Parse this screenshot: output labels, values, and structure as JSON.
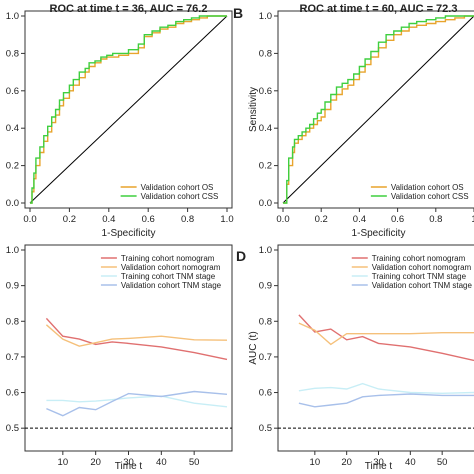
{
  "colors": {
    "os": "#E8A42C",
    "css": "#3FCF3F",
    "train_nomo": "#E07070",
    "valid_nomo": "#F5C07A",
    "train_tnm": "#C8EEF6",
    "valid_tnm": "#A8C0EA",
    "ref": "#000000"
  },
  "chart_data": [
    {
      "id": "A",
      "panel_letter": "",
      "type": "line",
      "title": "ROC at time t = 36, AUC = 76.2",
      "xlabel": "1-Specificity",
      "ylabel": "",
      "xlim": [
        0,
        1
      ],
      "ylim": [
        0,
        1
      ],
      "xticks": [
        "0.0",
        "0.2",
        "0.4",
        "0.6",
        "0.8",
        "1.0"
      ],
      "yticks": [
        "0.0",
        "0.2",
        "0.4",
        "0.6",
        "0.8",
        "1.0"
      ],
      "legend": "bottom-right",
      "series": [
        {
          "name": "Validation cohort OS",
          "color_key": "os",
          "x": [
            0,
            0.01,
            0.02,
            0.03,
            0.05,
            0.07,
            0.09,
            0.11,
            0.13,
            0.15,
            0.17,
            0.2,
            0.22,
            0.25,
            0.28,
            0.3,
            0.33,
            0.36,
            0.39,
            0.42,
            0.45,
            0.5,
            0.55,
            0.58,
            0.62,
            0.66,
            0.7,
            0.74,
            0.78,
            0.82,
            0.86,
            0.9,
            0.94,
            1.0
          ],
          "y": [
            0,
            0.06,
            0.13,
            0.2,
            0.27,
            0.33,
            0.38,
            0.43,
            0.47,
            0.52,
            0.56,
            0.6,
            0.63,
            0.67,
            0.7,
            0.73,
            0.75,
            0.77,
            0.78,
            0.78,
            0.79,
            0.8,
            0.83,
            0.89,
            0.91,
            0.93,
            0.94,
            0.96,
            0.97,
            0.98,
            0.99,
            1.0,
            1.0,
            1.0
          ]
        },
        {
          "name": "Validation cohort CSS",
          "color_key": "css",
          "x": [
            0,
            0.01,
            0.02,
            0.03,
            0.05,
            0.07,
            0.09,
            0.11,
            0.13,
            0.15,
            0.17,
            0.2,
            0.22,
            0.25,
            0.28,
            0.3,
            0.33,
            0.36,
            0.39,
            0.42,
            0.45,
            0.5,
            0.55,
            0.58,
            0.62,
            0.66,
            0.7,
            0.74,
            0.78,
            0.82,
            0.86,
            0.9,
            0.94,
            1.0
          ],
          "y": [
            0,
            0.08,
            0.16,
            0.24,
            0.3,
            0.36,
            0.41,
            0.46,
            0.5,
            0.55,
            0.59,
            0.63,
            0.66,
            0.7,
            0.72,
            0.75,
            0.76,
            0.78,
            0.79,
            0.8,
            0.8,
            0.82,
            0.85,
            0.9,
            0.92,
            0.94,
            0.95,
            0.97,
            0.98,
            0.99,
            1.0,
            1.0,
            1.0,
            1.0
          ]
        }
      ]
    },
    {
      "id": "B",
      "panel_letter": "B",
      "type": "line",
      "title": "ROC at time t = 60, AUC = 72.3",
      "xlabel": "1-Specificity",
      "ylabel": "Sensitivity",
      "xlim": [
        0,
        1
      ],
      "ylim": [
        0,
        1
      ],
      "xticks": [
        "0.0",
        "0.2",
        "0.4",
        "0.6",
        "0.8",
        "1"
      ],
      "yticks": [
        "0.0",
        "0.2",
        "0.4",
        "0.6",
        "0.8",
        "1.0"
      ],
      "legend": "bottom-right",
      "series": [
        {
          "name": "Validation cohort OS",
          "color_key": "os",
          "x": [
            0,
            0.02,
            0.03,
            0.05,
            0.06,
            0.08,
            0.1,
            0.12,
            0.14,
            0.16,
            0.18,
            0.2,
            0.22,
            0.25,
            0.28,
            0.31,
            0.34,
            0.37,
            0.4,
            0.43,
            0.46,
            0.5,
            0.54,
            0.58,
            0.62,
            0.66,
            0.7,
            0.75,
            0.8,
            0.85,
            0.9,
            0.95,
            1.0
          ],
          "y": [
            0,
            0.1,
            0.2,
            0.27,
            0.32,
            0.34,
            0.36,
            0.38,
            0.4,
            0.42,
            0.44,
            0.46,
            0.5,
            0.55,
            0.58,
            0.61,
            0.63,
            0.66,
            0.7,
            0.74,
            0.78,
            0.83,
            0.87,
            0.9,
            0.92,
            0.94,
            0.95,
            0.96,
            0.97,
            0.98,
            0.99,
            1.0,
            1.0
          ]
        },
        {
          "name": "Validation cohort CSS",
          "color_key": "css",
          "x": [
            0,
            0.02,
            0.03,
            0.05,
            0.06,
            0.08,
            0.1,
            0.12,
            0.14,
            0.16,
            0.18,
            0.2,
            0.22,
            0.25,
            0.28,
            0.31,
            0.34,
            0.37,
            0.4,
            0.43,
            0.46,
            0.5,
            0.54,
            0.58,
            0.62,
            0.66,
            0.7,
            0.75,
            0.8,
            0.85,
            0.9,
            0.95,
            1.0
          ],
          "y": [
            0,
            0.12,
            0.24,
            0.3,
            0.34,
            0.36,
            0.38,
            0.4,
            0.42,
            0.45,
            0.48,
            0.5,
            0.54,
            0.58,
            0.62,
            0.64,
            0.66,
            0.69,
            0.73,
            0.77,
            0.81,
            0.86,
            0.9,
            0.92,
            0.94,
            0.96,
            0.97,
            0.98,
            0.99,
            1.0,
            1.0,
            1.0,
            1.0
          ]
        }
      ]
    },
    {
      "id": "C",
      "panel_letter": "",
      "type": "line",
      "title": "",
      "xlabel": "Time t",
      "ylabel": "",
      "xlim": [
        0,
        60
      ],
      "ylim": [
        0.45,
        1.0
      ],
      "xticks": [
        10,
        20,
        30,
        40,
        50
      ],
      "yticks": [
        "0.5",
        "0.6",
        "0.7",
        "0.8",
        "0.9",
        "1.0"
      ],
      "ref_line": 0.5,
      "legend": "top-right",
      "series": [
        {
          "name": "Training cohort nomogram",
          "color_key": "train_nomo",
          "x": [
            5,
            10,
            15,
            20,
            25,
            30,
            40,
            50,
            60
          ],
          "y": [
            0.808,
            0.758,
            0.75,
            0.735,
            0.742,
            0.738,
            0.728,
            0.712,
            0.693
          ]
        },
        {
          "name": "Validation cohort nomogram",
          "color_key": "valid_nomo",
          "x": [
            5,
            10,
            15,
            20,
            25,
            30,
            40,
            50,
            60
          ],
          "y": [
            0.79,
            0.75,
            0.73,
            0.74,
            0.75,
            0.752,
            0.758,
            0.748,
            0.747
          ]
        },
        {
          "name": "Training cohort TNM stage",
          "color_key": "train_tnm",
          "x": [
            5,
            10,
            15,
            20,
            25,
            30,
            40,
            50,
            60
          ],
          "y": [
            0.578,
            0.578,
            0.574,
            0.576,
            0.58,
            0.585,
            0.59,
            0.57,
            0.56
          ]
        },
        {
          "name": "Validation cohort TNM stage",
          "color_key": "valid_tnm",
          "x": [
            5,
            10,
            15,
            20,
            25,
            30,
            40,
            50,
            60
          ],
          "y": [
            0.555,
            0.535,
            0.558,
            0.552,
            0.575,
            0.597,
            0.589,
            0.603,
            0.595
          ]
        }
      ]
    },
    {
      "id": "D",
      "panel_letter": "D",
      "type": "line",
      "title": "",
      "xlabel": "Time t",
      "ylabel": "AUC (t)",
      "xlim": [
        0,
        60
      ],
      "ylim": [
        0.45,
        1.0
      ],
      "xticks": [
        10,
        20,
        30,
        40,
        50
      ],
      "yticks": [
        "0.5",
        "0.6",
        "0.7",
        "0.8",
        "0.9",
        "1.0"
      ],
      "ref_line": 0.5,
      "legend": "top-right",
      "series": [
        {
          "name": "Training cohort nomogram",
          "color_key": "train_nomo",
          "x": [
            5,
            10,
            15,
            20,
            25,
            30,
            40,
            50,
            60
          ],
          "y": [
            0.818,
            0.77,
            0.778,
            0.748,
            0.757,
            0.738,
            0.728,
            0.71,
            0.69
          ]
        },
        {
          "name": "Validation cohort nomogram",
          "color_key": "valid_nomo",
          "x": [
            5,
            10,
            15,
            20,
            25,
            30,
            40,
            50,
            60
          ],
          "y": [
            0.795,
            0.775,
            0.735,
            0.765,
            0.765,
            0.765,
            0.765,
            0.768,
            0.768
          ]
        },
        {
          "name": "Training cohort TNM stage",
          "color_key": "train_tnm",
          "x": [
            5,
            10,
            15,
            20,
            25,
            30,
            40,
            50,
            60
          ],
          "y": [
            0.605,
            0.612,
            0.614,
            0.61,
            0.625,
            0.61,
            0.6,
            0.598,
            0.6
          ]
        },
        {
          "name": "Validation cohort TNM stage",
          "color_key": "valid_tnm",
          "x": [
            5,
            10,
            15,
            20,
            25,
            30,
            40,
            50,
            60
          ],
          "y": [
            0.57,
            0.56,
            0.565,
            0.57,
            0.588,
            0.592,
            0.596,
            0.592,
            0.592
          ]
        }
      ]
    }
  ]
}
